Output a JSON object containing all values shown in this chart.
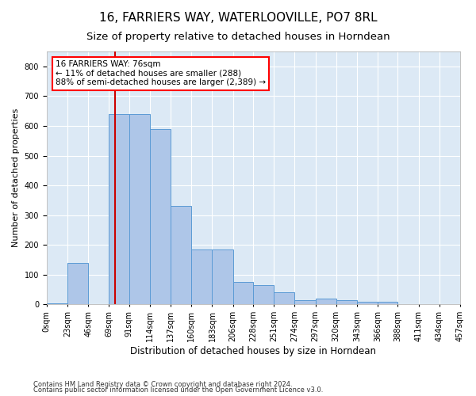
{
  "title": "16, FARRIERS WAY, WATERLOOVILLE, PO7 8RL",
  "subtitle": "Size of property relative to detached houses in Horndean",
  "xlabel": "Distribution of detached houses by size in Horndean",
  "ylabel": "Number of detached properties",
  "footnote1": "Contains HM Land Registry data © Crown copyright and database right 2024.",
  "footnote2": "Contains public sector information licensed under the Open Government Licence v3.0.",
  "bin_edges": [
    0,
    23,
    46,
    69,
    91,
    114,
    137,
    160,
    183,
    206,
    228,
    251,
    274,
    297,
    320,
    343,
    366,
    388,
    411,
    434,
    457
  ],
  "bar_heights": [
    5,
    140,
    2,
    640,
    640,
    590,
    330,
    185,
    185,
    75,
    65,
    40,
    15,
    20,
    15,
    10,
    10,
    0,
    0,
    0
  ],
  "bar_color": "#aec6e8",
  "bar_edge_color": "#5b9bd5",
  "plot_bg_color": "#dce9f5",
  "fig_bg_color": "#ffffff",
  "grid_color": "#ffffff",
  "property_line_x": 76,
  "property_line_color": "#cc0000",
  "annotation_text": "16 FARRIERS WAY: 76sqm\n← 11% of detached houses are smaller (288)\n88% of semi-detached houses are larger (2,389) →",
  "ylim": [
    0,
    850
  ],
  "yticks": [
    0,
    100,
    200,
    300,
    400,
    500,
    600,
    700,
    800
  ],
  "title_fontsize": 11,
  "subtitle_fontsize": 9.5,
  "xlabel_fontsize": 8.5,
  "ylabel_fontsize": 8,
  "tick_fontsize": 7,
  "tick_labels": [
    "0sqm",
    "23sqm",
    "46sqm",
    "69sqm",
    "91sqm",
    "114sqm",
    "137sqm",
    "160sqm",
    "183sqm",
    "206sqm",
    "228sqm",
    "251sqm",
    "274sqm",
    "297sqm",
    "320sqm",
    "343sqm",
    "366sqm",
    "388sqm",
    "411sqm",
    "434sqm",
    "457sqm"
  ]
}
